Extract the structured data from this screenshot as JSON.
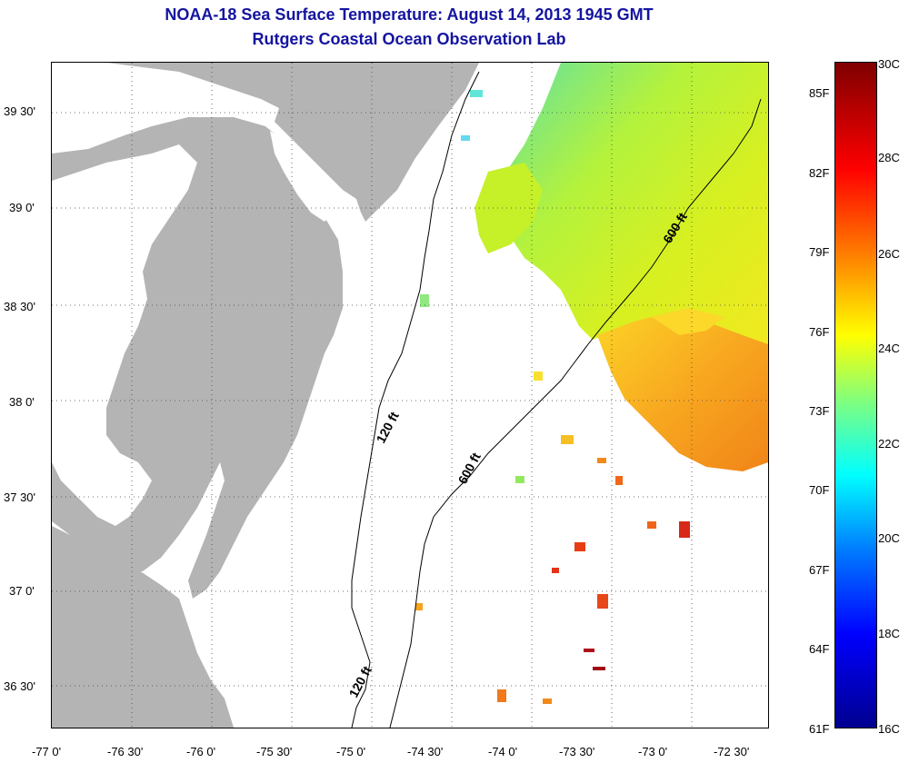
{
  "title": {
    "line1": "NOAA-18 Sea Surface Temperature:  August 14, 2013 1945 GMT",
    "line2": "Rutgers Coastal Ocean Observation Lab"
  },
  "latitude_labels": [
    "39 30'",
    "39 0'",
    "38 30'",
    "38 0'",
    "37 30'",
    "37 0'",
    "36 30'"
  ],
  "longitude_labels": [
    "-77 0'",
    "-76 30'",
    "-76 0'",
    "-75 30'",
    "-75 0'",
    "-74 30'",
    "-74 0'",
    "-73 30'",
    "-73 0'",
    "-72 30'"
  ],
  "isobaths": [
    "120 ft",
    "600 ft",
    "120 ft",
    "600 ft"
  ],
  "colorbar": {
    "fahrenheit": [
      "85F",
      "82F",
      "79F",
      "76F",
      "73F",
      "70F",
      "67F",
      "64F",
      "61F"
    ],
    "celsius": [
      "30C",
      "28C",
      "26C",
      "24C",
      "22C",
      "20C",
      "18C",
      "16C"
    ]
  },
  "colors": {
    "title": "#1414a0",
    "land": "#b4b4b4",
    "water_no_data": "#ffffff"
  }
}
